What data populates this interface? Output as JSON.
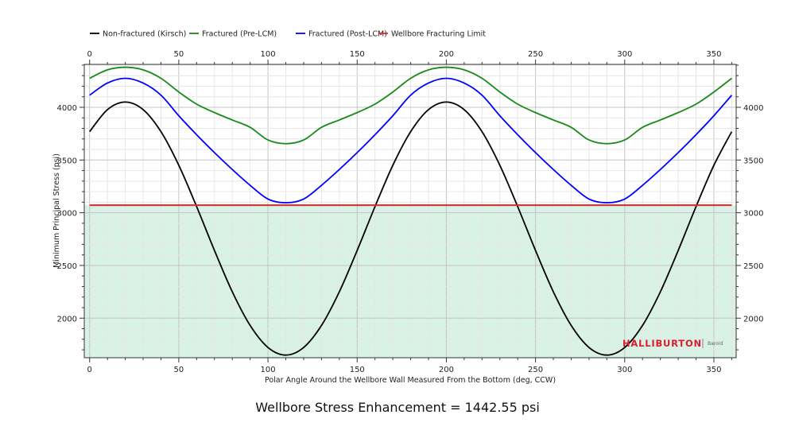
{
  "chart_data": {
    "type": "line",
    "title": "",
    "xlabel": "Polar Angle Around the Wellbore Wall Measured From the Bottom (deg, CCW)",
    "ylabel": "Minimum Principal Stress (psi)",
    "xlim": [
      -3,
      362.5
    ],
    "ylim": [
      1625,
      4407
    ],
    "x_ticks": [
      0,
      50,
      100,
      150,
      200,
      250,
      300,
      350
    ],
    "y_ticks": [
      2000,
      2500,
      3000,
      3500,
      4000
    ],
    "grid": true,
    "legend_position": "top-left",
    "x": [
      0,
      10,
      20,
      30,
      40,
      50,
      60,
      70,
      80,
      90,
      100,
      110,
      120,
      130,
      140,
      150,
      160,
      170,
      180,
      190,
      200,
      210,
      220,
      230,
      240,
      250,
      260,
      270,
      280,
      290,
      300,
      310,
      320,
      330,
      340,
      350,
      360
    ],
    "series": [
      {
        "name": "Non-fractured (Kirsch)",
        "color": "#000000",
        "values": [
          3769,
          3978,
          4050,
          3978,
          3769,
          3450,
          3058,
          2642,
          2250,
          1931,
          1722,
          1650,
          1722,
          1931,
          2250,
          2642,
          3058,
          3450,
          3769,
          3978,
          4050,
          3978,
          3769,
          3450,
          3058,
          2642,
          2250,
          1931,
          1722,
          1650,
          1722,
          1931,
          2250,
          2642,
          3058,
          3450,
          3769
        ]
      },
      {
        "name": "Fractured (Pre-LCM)",
        "color": "#1a8a1a",
        "values": [
          4275,
          4355,
          4380,
          4355,
          4275,
          4145,
          4030,
          3950,
          3880,
          3810,
          3690,
          3655,
          3690,
          3810,
          3880,
          3950,
          4030,
          4145,
          4275,
          4355,
          4380,
          4355,
          4275,
          4145,
          4030,
          3950,
          3880,
          3810,
          3690,
          3655,
          3690,
          3810,
          3880,
          3950,
          4030,
          4145,
          4275
        ]
      },
      {
        "name": "Fractured (Post-LCM)",
        "color": "#0000ff",
        "values": [
          4115,
          4230,
          4275,
          4230,
          4115,
          3920,
          3740,
          3570,
          3410,
          3260,
          3130,
          3095,
          3130,
          3260,
          3410,
          3570,
          3740,
          3920,
          4115,
          4230,
          4275,
          4230,
          4115,
          3920,
          3740,
          3570,
          3410,
          3260,
          3130,
          3095,
          3130,
          3260,
          3410,
          3570,
          3740,
          3920,
          4115
        ]
      },
      {
        "name": "Wellbore Fracturing Limit",
        "color": "#ee2222",
        "constant": 3072
      }
    ],
    "shaded_region": {
      "below": 3072,
      "color": "#d8f2e6"
    },
    "annotation": "Wellbore Stress Enhancement = 1442.55 psi"
  },
  "logo": {
    "brand": "HALLIBURTON",
    "sub": "Baroid",
    "brand_color": "#d81e2a"
  }
}
